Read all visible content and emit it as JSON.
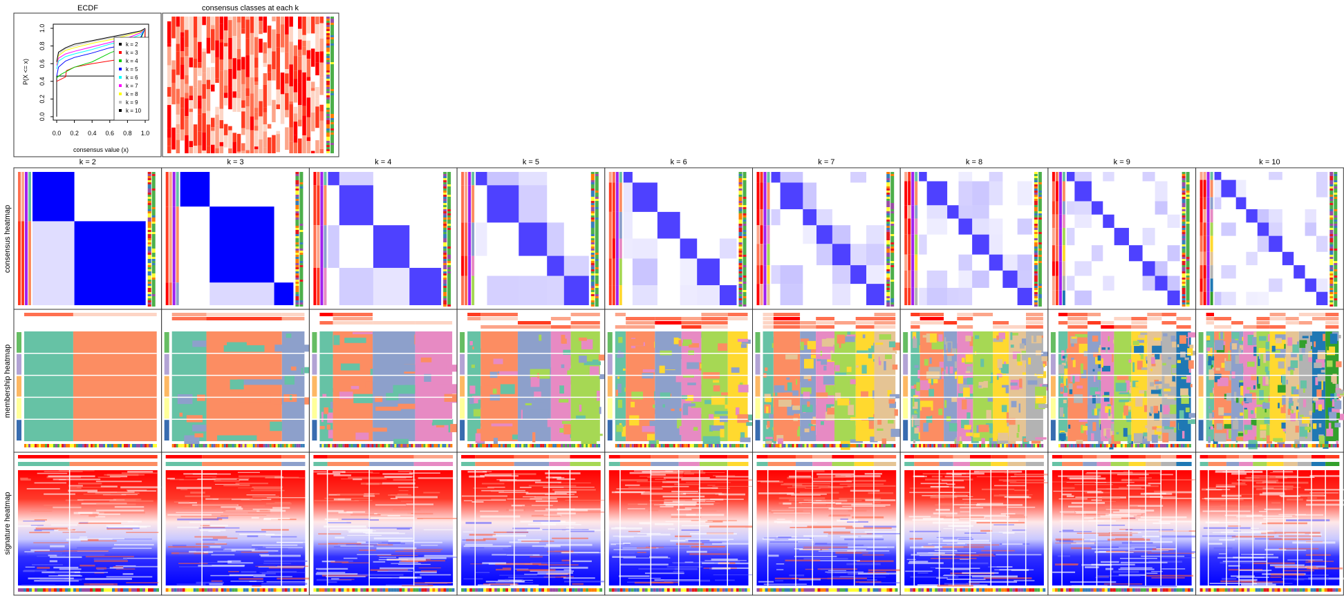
{
  "titles": {
    "ecdf": "ECDF",
    "classes": "consensus classes at each k"
  },
  "row_labels": [
    "consensus heatmap",
    "membership heatmap",
    "signature heatmap"
  ],
  "k_labels": [
    "k = 2",
    "k = 3",
    "k = 4",
    "k = 5",
    "k = 6",
    "k = 7",
    "k = 8",
    "k = 9",
    "k = 10"
  ],
  "colors": {
    "consensus_high": "#0000FF",
    "consensus_low": "#FFFFFF",
    "signature_high": "#FF0000",
    "signature_mid": "#FFFFFF",
    "signature_low": "#0000FF",
    "class_palette": [
      "#66C2A5",
      "#FC8D62",
      "#8DA0CB",
      "#E78AC3",
      "#A6D854",
      "#FFD92F",
      "#E5C494",
      "#B3B3B3",
      "#1F78B4",
      "#33A02C"
    ]
  },
  "chart_data": {
    "type": "line",
    "title": "ECDF",
    "xlabel": "consensus value (x)",
    "ylabel": "P(X <= x)",
    "xlim": [
      0,
      1
    ],
    "ylim": [
      0,
      1
    ],
    "xticks": [
      "0.0",
      "0.2",
      "0.4",
      "0.6",
      "0.8",
      "1.0"
    ],
    "yticks": [
      "0.0",
      "0.2",
      "0.4",
      "0.6",
      "0.8",
      "1.0"
    ],
    "grid": false,
    "legend_position": "right",
    "series": [
      {
        "name": "k = 2",
        "color": "#000000",
        "x": [
          0,
          0,
          0.01,
          0.99,
          1
        ],
        "y": [
          0,
          0.46,
          0.46,
          0.46,
          1.0
        ]
      },
      {
        "name": "k = 3",
        "color": "#FF0000",
        "x": [
          0,
          0.1,
          0.11,
          0.2,
          0.4,
          0.65,
          0.85,
          0.99,
          1
        ],
        "y": [
          0.4,
          0.45,
          0.52,
          0.56,
          0.6,
          0.64,
          0.68,
          0.72,
          1.0
        ]
      },
      {
        "name": "k = 4",
        "color": "#00CD00",
        "x": [
          0,
          0.05,
          0.2,
          0.4,
          0.6,
          0.8,
          0.95,
          1
        ],
        "y": [
          0.44,
          0.48,
          0.56,
          0.62,
          0.72,
          0.8,
          0.88,
          1.0
        ]
      },
      {
        "name": "k = 5",
        "color": "#0000FF",
        "x": [
          0,
          0.02,
          0.1,
          0.2,
          0.4,
          0.6,
          0.8,
          0.95,
          1
        ],
        "y": [
          0.46,
          0.56,
          0.63,
          0.67,
          0.72,
          0.78,
          0.82,
          0.9,
          1.0
        ]
      },
      {
        "name": "k = 6",
        "color": "#00FFFF",
        "x": [
          0,
          0.02,
          0.1,
          0.2,
          0.4,
          0.6,
          0.8,
          0.95,
          1
        ],
        "y": [
          0.54,
          0.63,
          0.68,
          0.71,
          0.76,
          0.82,
          0.87,
          0.93,
          1.0
        ]
      },
      {
        "name": "k = 7",
        "color": "#FF00FF",
        "x": [
          0,
          0.02,
          0.1,
          0.2,
          0.4,
          0.6,
          0.8,
          0.95,
          1
        ],
        "y": [
          0.58,
          0.66,
          0.71,
          0.74,
          0.79,
          0.84,
          0.89,
          0.95,
          1.0
        ]
      },
      {
        "name": "k = 8",
        "color": "#FFFF00",
        "x": [
          0,
          0.02,
          0.1,
          0.2,
          0.4,
          0.6,
          0.8,
          0.95,
          1
        ],
        "y": [
          0.6,
          0.69,
          0.75,
          0.78,
          0.83,
          0.87,
          0.92,
          0.96,
          1.0
        ]
      },
      {
        "name": "k = 9",
        "color": "#BEBEBE",
        "x": [
          0,
          0.02,
          0.1,
          0.2,
          0.4,
          0.6,
          0.8,
          0.95,
          1
        ],
        "y": [
          0.61,
          0.71,
          0.77,
          0.8,
          0.85,
          0.89,
          0.93,
          0.97,
          1.0
        ]
      },
      {
        "name": "k = 10",
        "color": "#000000",
        "x": [
          0,
          0.02,
          0.1,
          0.2,
          0.4,
          0.6,
          0.8,
          0.95,
          1
        ],
        "y": [
          0.62,
          0.73,
          0.78,
          0.82,
          0.86,
          0.9,
          0.94,
          0.97,
          1.0
        ]
      }
    ]
  }
}
